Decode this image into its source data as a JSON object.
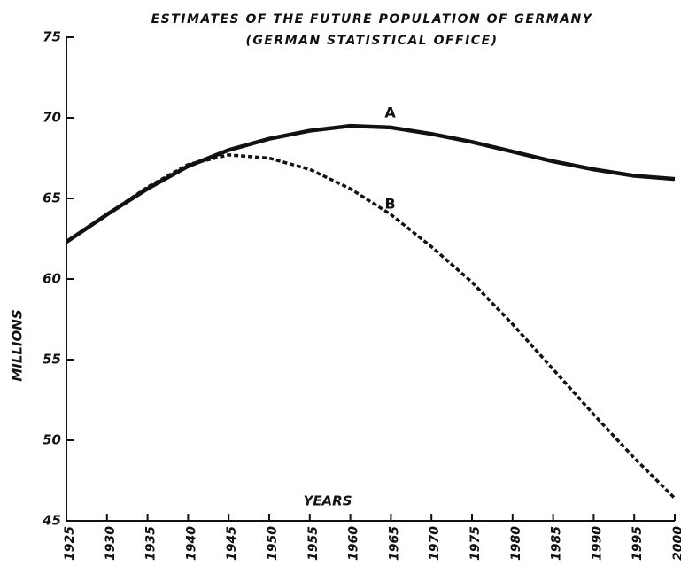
{
  "chart_data": {
    "type": "line",
    "title": "ESTIMATES OF THE FUTURE POPULATION OF GERMANY",
    "subtitle": "(GERMAN STATISTICAL OFFICE)",
    "x_label": "YEARS",
    "y_label": "MILLIONS",
    "x": [
      1925,
      1930,
      1935,
      1940,
      1945,
      1950,
      1955,
      1960,
      1965,
      1970,
      1975,
      1980,
      1985,
      1990,
      1995,
      2000
    ],
    "series": [
      {
        "name": "A",
        "color": "#111111",
        "line_style": "solid",
        "values": [
          62.3,
          64.0,
          65.6,
          67.0,
          68.0,
          68.7,
          69.2,
          69.5,
          69.4,
          69.0,
          68.5,
          67.9,
          67.3,
          66.8,
          66.4,
          66.2
        ]
      },
      {
        "name": "B",
        "color": "#111111",
        "line_style": "dashed",
        "values": [
          62.3,
          64.0,
          65.7,
          67.1,
          67.7,
          67.5,
          66.8,
          65.6,
          64.0,
          62.0,
          59.8,
          57.2,
          54.4,
          51.6,
          48.9,
          46.4
        ]
      }
    ],
    "xlim": [
      1925,
      2000
    ],
    "xticks": [
      1925,
      1930,
      1935,
      1940,
      1945,
      1950,
      1955,
      1960,
      1965,
      1970,
      1975,
      1980,
      1985,
      1990,
      1995,
      2000
    ],
    "ylim": [
      45,
      75
    ],
    "yticks": [
      45,
      50,
      55,
      60,
      65,
      70,
      75
    ],
    "grid": false
  }
}
